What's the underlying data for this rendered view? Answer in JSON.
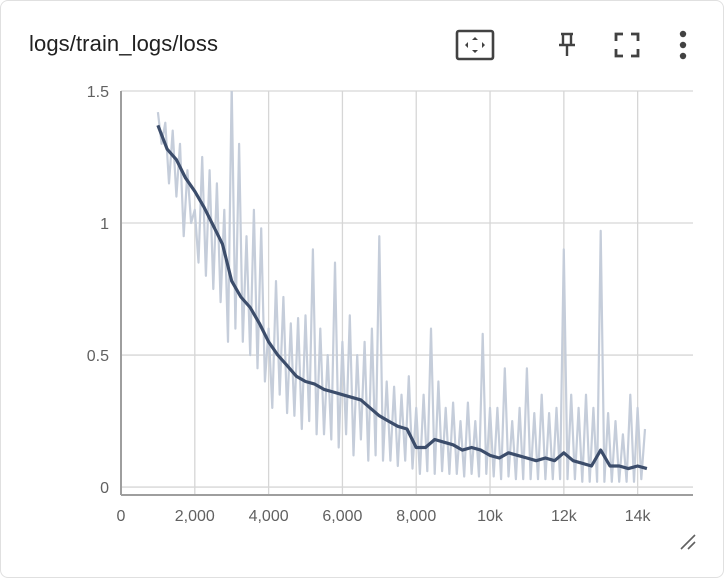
{
  "card": {
    "title": "logs/train_logs/loss"
  },
  "toolbar": {
    "fit_icon": "fit-domain-icon",
    "pin_icon": "pin-icon",
    "fullscreen_icon": "fullscreen-icon",
    "more_icon": "more-vert-icon"
  },
  "colors": {
    "line": "#3c4d6b",
    "line_raw": "#c5cdda",
    "grid": "#d6d6d6",
    "axis": "#9e9e9e"
  },
  "chart_data": {
    "type": "line",
    "title": "",
    "xlabel": "",
    "ylabel": "",
    "xlim": [
      0,
      15500
    ],
    "ylim": [
      -0.03,
      1.5
    ],
    "x_ticks": [
      0,
      2000,
      4000,
      6000,
      8000,
      10000,
      12000,
      14000
    ],
    "x_tick_labels": [
      "0",
      "2,000",
      "4,000",
      "6,000",
      "8,000",
      "10k",
      "12k",
      "14k"
    ],
    "y_ticks": [
      0,
      0.5,
      1,
      1.5
    ],
    "y_tick_labels": [
      "0",
      "0.5",
      "1",
      "1.5"
    ],
    "grid": true,
    "series": [
      {
        "smoothed": true,
        "x": [
          1000,
          1250,
          1500,
          1750,
          2000,
          2250,
          2500,
          2750,
          3000,
          3250,
          3500,
          3750,
          4000,
          4250,
          4500,
          4750,
          5000,
          5250,
          5500,
          5750,
          6000,
          6250,
          6500,
          6750,
          7000,
          7250,
          7500,
          7750,
          8000,
          8250,
          8500,
          8750,
          9000,
          9250,
          9500,
          9750,
          10000,
          10250,
          10500,
          10750,
          11000,
          11250,
          11500,
          11750,
          12000,
          12250,
          12500,
          12750,
          13000,
          13250,
          13500,
          13750,
          14000,
          14250
        ],
        "y": [
          1.37,
          1.28,
          1.24,
          1.17,
          1.12,
          1.06,
          0.99,
          0.92,
          0.78,
          0.72,
          0.68,
          0.62,
          0.55,
          0.5,
          0.46,
          0.42,
          0.4,
          0.39,
          0.37,
          0.36,
          0.35,
          0.34,
          0.33,
          0.3,
          0.27,
          0.25,
          0.23,
          0.22,
          0.15,
          0.15,
          0.18,
          0.17,
          0.16,
          0.14,
          0.15,
          0.14,
          0.12,
          0.11,
          0.13,
          0.12,
          0.11,
          0.1,
          0.11,
          0.1,
          0.13,
          0.1,
          0.09,
          0.08,
          0.14,
          0.08,
          0.08,
          0.07,
          0.08,
          0.07
        ]
      },
      {
        "smoothed": false,
        "x": [
          1000,
          1100,
          1200,
          1300,
          1400,
          1500,
          1600,
          1700,
          1800,
          1900,
          2000,
          2100,
          2200,
          2300,
          2400,
          2500,
          2600,
          2700,
          2800,
          2900,
          3000,
          3100,
          3200,
          3300,
          3400,
          3500,
          3600,
          3700,
          3800,
          3900,
          4000,
          4100,
          4200,
          4300,
          4400,
          4500,
          4600,
          4700,
          4800,
          4900,
          5000,
          5100,
          5200,
          5300,
          5400,
          5500,
          5600,
          5700,
          5800,
          5900,
          6000,
          6100,
          6200,
          6300,
          6400,
          6500,
          6600,
          6700,
          6800,
          6900,
          7000,
          7100,
          7200,
          7300,
          7400,
          7500,
          7600,
          7700,
          7800,
          7900,
          8000,
          8100,
          8200,
          8300,
          8400,
          8500,
          8600,
          8700,
          8800,
          8900,
          9000,
          9100,
          9200,
          9300,
          9400,
          9500,
          9600,
          9700,
          9800,
          9900,
          10000,
          10100,
          10200,
          10300,
          10400,
          10500,
          10600,
          10700,
          10800,
          10900,
          11000,
          11100,
          11200,
          11300,
          11400,
          11500,
          11600,
          11700,
          11800,
          11900,
          12000,
          12100,
          12200,
          12300,
          12400,
          12500,
          12600,
          12700,
          12800,
          12900,
          13000,
          13100,
          13200,
          13300,
          13400,
          13500,
          13600,
          13700,
          13800,
          13900,
          14000,
          14100,
          14200
        ],
        "y": [
          1.42,
          1.3,
          1.38,
          1.15,
          1.35,
          1.1,
          1.3,
          0.95,
          1.2,
          1.0,
          1.05,
          0.85,
          1.25,
          0.8,
          1.2,
          0.75,
          1.15,
          0.7,
          1.05,
          0.55,
          1.52,
          0.6,
          1.3,
          0.55,
          0.95,
          0.5,
          1.05,
          0.45,
          0.98,
          0.4,
          0.6,
          0.3,
          0.78,
          0.35,
          0.72,
          0.28,
          0.62,
          0.27,
          0.64,
          0.22,
          0.65,
          0.25,
          0.9,
          0.2,
          0.6,
          0.2,
          0.5,
          0.18,
          0.85,
          0.15,
          0.55,
          0.2,
          0.65,
          0.12,
          0.5,
          0.18,
          0.55,
          0.1,
          0.6,
          0.12,
          0.95,
          0.1,
          0.4,
          0.1,
          0.38,
          0.08,
          0.35,
          0.1,
          0.42,
          0.07,
          0.3,
          0.05,
          0.35,
          0.06,
          0.6,
          0.05,
          0.4,
          0.06,
          0.3,
          0.05,
          0.32,
          0.05,
          0.25,
          0.04,
          0.32,
          0.05,
          0.25,
          0.04,
          0.58,
          0.05,
          0.3,
          0.04,
          0.3,
          0.03,
          0.45,
          0.04,
          0.25,
          0.03,
          0.3,
          0.03,
          0.45,
          0.03,
          0.28,
          0.03,
          0.35,
          0.03,
          0.28,
          0.03,
          0.3,
          0.03,
          0.9,
          0.03,
          0.35,
          0.03,
          0.3,
          0.02,
          0.35,
          0.02,
          0.3,
          0.02,
          0.97,
          0.02,
          0.28,
          0.02,
          0.25,
          0.02,
          0.2,
          0.02,
          0.35,
          0.02,
          0.3,
          0.03,
          0.22
        ]
      }
    ]
  }
}
